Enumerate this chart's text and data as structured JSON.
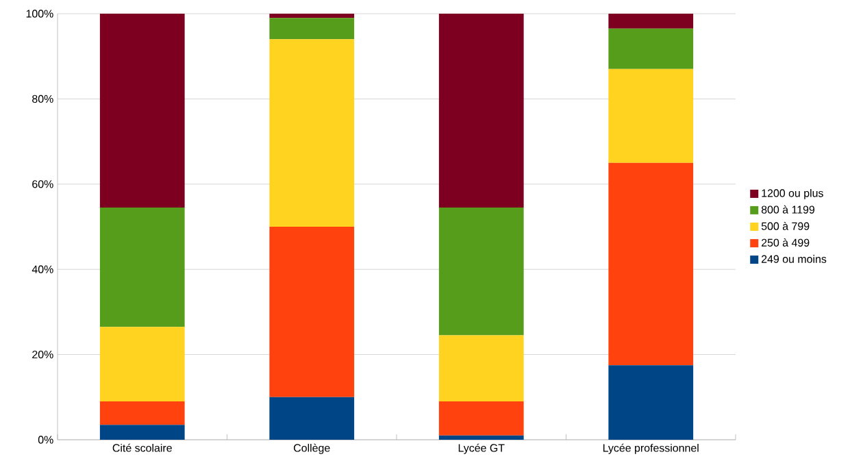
{
  "chart_data": {
    "type": "bar",
    "stacked": true,
    "categories": [
      "Cité scolaire",
      "Collège",
      "Lycée GT",
      "Lycée professionnel"
    ],
    "series": [
      {
        "name": "249 ou moins",
        "color": "#004586",
        "values": [
          3.5,
          10,
          1,
          17.5
        ]
      },
      {
        "name": "250 à 499",
        "color": "#ff420e",
        "values": [
          5.5,
          40,
          8,
          47.5
        ]
      },
      {
        "name": "500 à 799",
        "color": "#ffd320",
        "values": [
          17.5,
          44,
          15.5,
          22
        ]
      },
      {
        "name": "800 à 1199",
        "color": "#579d1c",
        "values": [
          28,
          5,
          30,
          9.5
        ]
      },
      {
        "name": "1200 ou plus",
        "color": "#7e0021",
        "values": [
          45.5,
          1,
          45.5,
          3.5
        ]
      }
    ],
    "ylim": [
      0,
      100
    ],
    "yticks": [
      {
        "value": 0,
        "label": "0%"
      },
      {
        "value": 20,
        "label": "20%"
      },
      {
        "value": 40,
        "label": "40%"
      },
      {
        "value": 60,
        "label": "60%"
      },
      {
        "value": 80,
        "label": "80%"
      },
      {
        "value": 100,
        "label": "100%"
      }
    ],
    "grid": "y",
    "legend": "right"
  }
}
